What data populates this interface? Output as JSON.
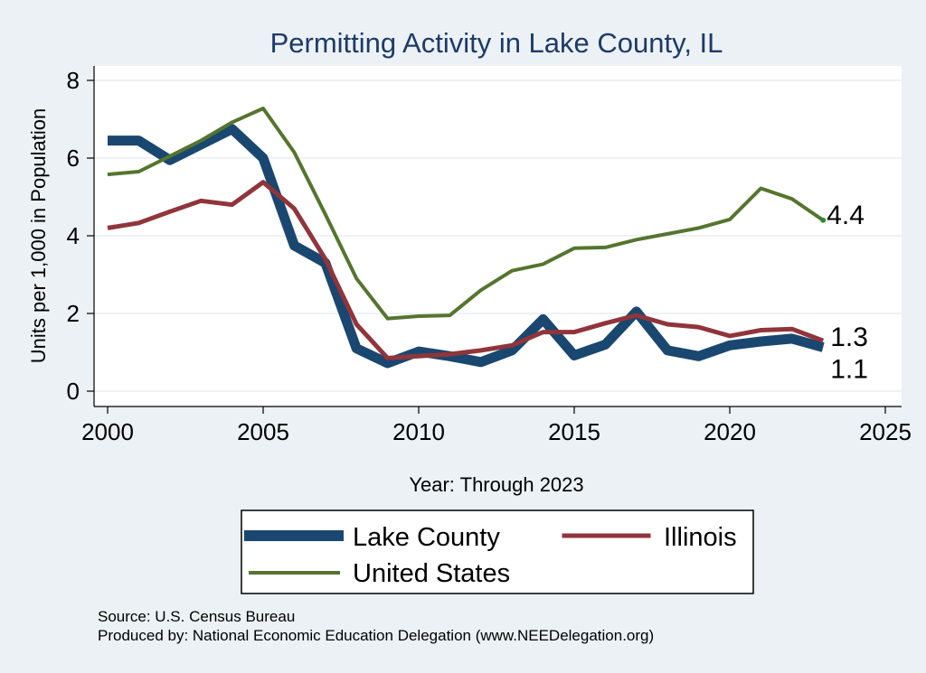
{
  "chart_data": {
    "type": "line",
    "title": "Permitting Activity in Lake County, IL",
    "xlabel": "Year: Through 2023",
    "ylabel": "Units per 1,000 in Population",
    "xlim": [
      2000,
      2025
    ],
    "ylim": [
      0,
      8
    ],
    "x_ticks": [
      2000,
      2005,
      2010,
      2015,
      2020,
      2025
    ],
    "y_ticks": [
      0,
      2,
      4,
      6,
      8
    ],
    "grid": true,
    "legend_position": "bottom",
    "x": [
      2000,
      2001,
      2002,
      2003,
      2004,
      2005,
      2006,
      2007,
      2008,
      2009,
      2010,
      2011,
      2012,
      2013,
      2014,
      2015,
      2016,
      2017,
      2018,
      2019,
      2020,
      2021,
      2022,
      2023
    ],
    "series": [
      {
        "name": "Lake County",
        "color": "#1a476f",
        "values": [
          6.45,
          6.45,
          5.95,
          6.35,
          6.75,
          6.0,
          3.75,
          3.3,
          1.1,
          0.72,
          1.02,
          0.9,
          0.75,
          1.05,
          1.85,
          0.92,
          1.2,
          2.05,
          1.05,
          0.9,
          1.18,
          1.28,
          1.35,
          1.13
        ],
        "end_label": "1.1"
      },
      {
        "name": "Illinois",
        "color": "#90353b",
        "values": [
          4.2,
          4.33,
          4.62,
          4.9,
          4.8,
          5.38,
          4.7,
          3.4,
          1.72,
          0.85,
          0.9,
          0.95,
          1.05,
          1.18,
          1.52,
          1.52,
          1.75,
          1.95,
          1.72,
          1.65,
          1.42,
          1.57,
          1.6,
          1.3
        ],
        "end_label": "1.3"
      },
      {
        "name": "United States",
        "color": "#55752f",
        "values": [
          5.58,
          5.65,
          6.05,
          6.45,
          6.92,
          7.28,
          6.15,
          4.55,
          2.9,
          1.87,
          1.93,
          1.95,
          2.6,
          3.1,
          3.27,
          3.68,
          3.7,
          3.9,
          4.05,
          4.2,
          4.42,
          5.22,
          4.95,
          4.4
        ],
        "end_label": "4.4"
      }
    ]
  },
  "footer": {
    "source": "Source: U.S. Census Bureau",
    "produced_by": "Produced by: National Economic Education Delegation (www.NEEDelegation.org)"
  }
}
